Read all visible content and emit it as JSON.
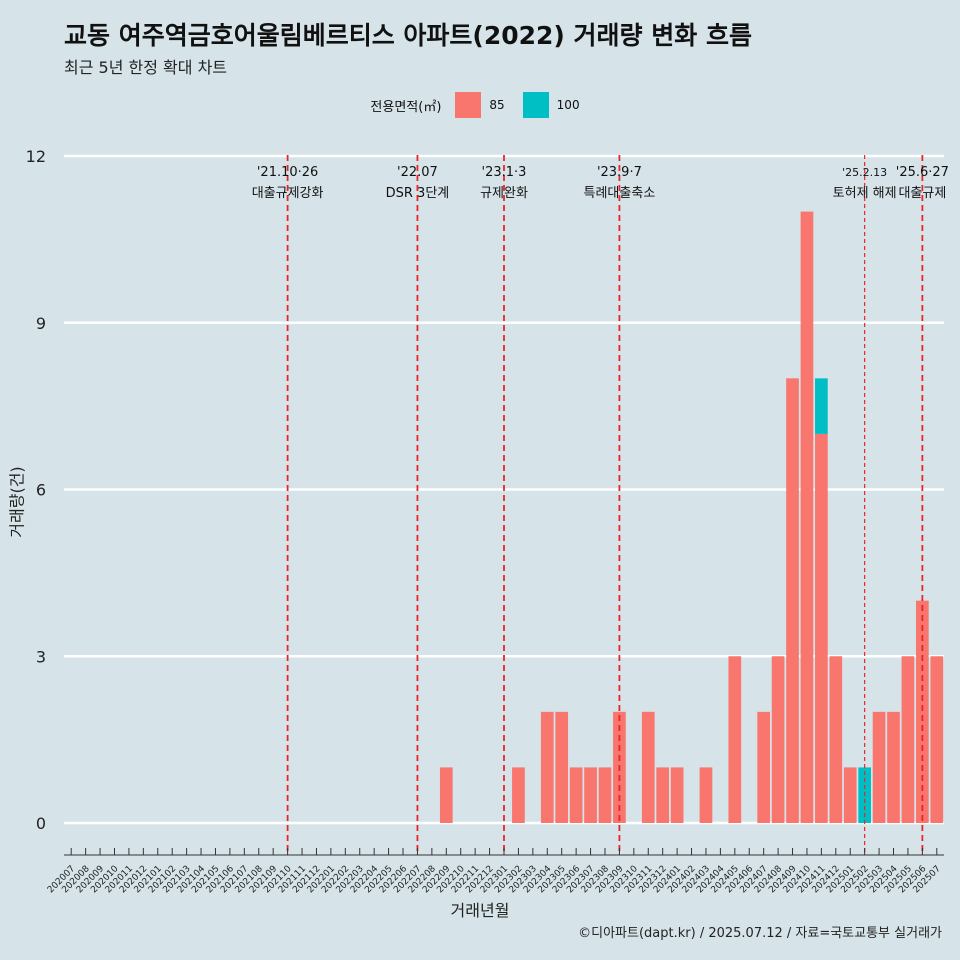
{
  "title": "교동 여주역금호어울림베르티스 아파트(2022) 거래량 변화 흐름",
  "subtitle": "최근 5년 한정 확대 차트",
  "caption": "©디아파트(dapt.kr) / 2025.07.12 / 자료=국토교통부 실거래가",
  "legend": {
    "title": "전용면적(㎡)",
    "items": [
      {
        "label": "85",
        "color": "#f8766d"
      },
      {
        "label": "100",
        "color": "#00bfc4"
      }
    ]
  },
  "chart_data": {
    "type": "bar",
    "stacked": true,
    "xlabel": "거래년월",
    "ylabel": "거래량(건)",
    "ylim": [
      0,
      12
    ],
    "yticks": [
      0,
      3,
      6,
      9,
      12
    ],
    "grid": true,
    "legend_position": "top",
    "categories": [
      "202007",
      "202008",
      "202009",
      "202010",
      "202011",
      "202012",
      "202101",
      "202102",
      "202103",
      "202104",
      "202105",
      "202106",
      "202107",
      "202108",
      "202109",
      "202110",
      "202111",
      "202112",
      "202201",
      "202202",
      "202203",
      "202204",
      "202205",
      "202206",
      "202207",
      "202208",
      "202209",
      "202210",
      "202211",
      "202212",
      "202301",
      "202302",
      "202303",
      "202304",
      "202305",
      "202306",
      "202307",
      "202308",
      "202309",
      "202310",
      "202311",
      "202312",
      "202401",
      "202402",
      "202403",
      "202404",
      "202405",
      "202406",
      "202407",
      "202408",
      "202409",
      "202410",
      "202411",
      "202412",
      "202501",
      "202502",
      "202503",
      "202504",
      "202505",
      "202506",
      "202507"
    ],
    "series": [
      {
        "name": "85",
        "color": "#f8766d",
        "values": [
          0,
          0,
          0,
          0,
          0,
          0,
          0,
          0,
          0,
          0,
          0,
          0,
          0,
          0,
          0,
          0,
          0,
          0,
          0,
          0,
          0,
          0,
          0,
          0,
          0,
          0,
          1,
          0,
          0,
          0,
          0,
          1,
          0,
          2,
          2,
          1,
          1,
          1,
          2,
          0,
          2,
          1,
          1,
          0,
          1,
          0,
          3,
          0,
          2,
          3,
          8,
          11,
          7,
          3,
          1,
          0,
          2,
          2,
          3,
          4,
          3
        ]
      },
      {
        "name": "100",
        "color": "#00bfc4",
        "values": [
          0,
          0,
          0,
          0,
          0,
          0,
          0,
          0,
          0,
          0,
          0,
          0,
          0,
          0,
          0,
          0,
          0,
          0,
          0,
          0,
          0,
          0,
          0,
          0,
          0,
          0,
          0,
          0,
          0,
          0,
          0,
          0,
          0,
          0,
          0,
          0,
          0,
          0,
          0,
          0,
          0,
          0,
          0,
          0,
          0,
          0,
          0,
          0,
          0,
          0,
          0,
          0,
          1,
          0,
          0,
          1,
          0,
          0,
          0,
          0,
          0
        ]
      }
    ],
    "events": [
      {
        "x": "202110",
        "date": "'21.10·26",
        "label": "대출규제강화",
        "style": "dashed"
      },
      {
        "x": "202207",
        "date": "'22.07",
        "label": "DSR 3단계",
        "style": "dashed"
      },
      {
        "x": "202301",
        "date": "'23.1·3",
        "label": "규제완화",
        "style": "dashed"
      },
      {
        "x": "202309",
        "date": "'23.9·7",
        "label": "특례대출축소",
        "style": "dashed"
      },
      {
        "x": "202502",
        "date": "'25.2.13",
        "label": "토허제 해제",
        "style": "dashed-thin"
      },
      {
        "x": "202506",
        "date": "'25.6·27",
        "label": "대출규제",
        "style": "dashed"
      }
    ]
  }
}
